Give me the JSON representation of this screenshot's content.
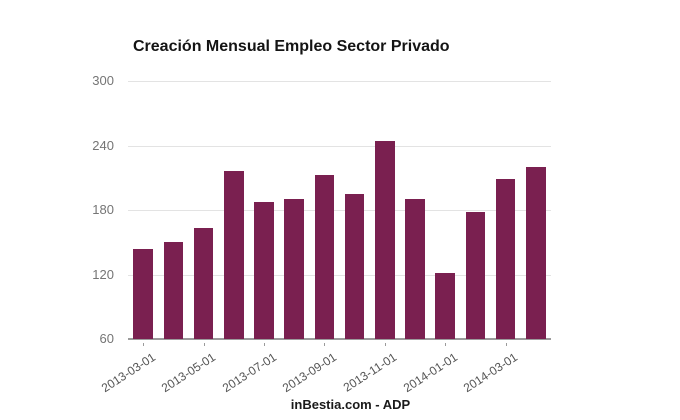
{
  "title": "Creación Mensual Empleo Sector Privado",
  "source_label": "inBestia.com - ADP",
  "colors": {
    "bar": "#7a2050",
    "gridline": "#e3e3e3",
    "baseline": "#9b9b9b",
    "y_axis_text": "#757575",
    "x_axis_text": "#545454",
    "title_text": "#141414",
    "background": "#ffffff"
  },
  "chart_data": {
    "type": "bar",
    "title": "Creación Mensual Empleo Sector Privado",
    "xlabel": "",
    "ylabel": "",
    "x": [
      "2013-03-01",
      "2013-04-01",
      "2013-05-01",
      "2013-06-01",
      "2013-07-01",
      "2013-08-01",
      "2013-09-01",
      "2013-10-01",
      "2013-11-01",
      "2013-12-01",
      "2014-01-01",
      "2014-02-01",
      "2014-03-01",
      "2014-04-01"
    ],
    "values": [
      144,
      150,
      163,
      216,
      187,
      190,
      213,
      195,
      244,
      190,
      121,
      178,
      209,
      220
    ],
    "ylim": [
      60,
      300
    ],
    "yticks": [
      60,
      120,
      180,
      240,
      300
    ],
    "xtick_labels": [
      "2013-03-01",
      "2013-05-01",
      "2013-07-01",
      "2013-09-01",
      "2013-11-01",
      "2014-01-01",
      "2014-03-01"
    ],
    "grid": true,
    "legend": false,
    "annotation": "inBestia.com - ADP"
  }
}
